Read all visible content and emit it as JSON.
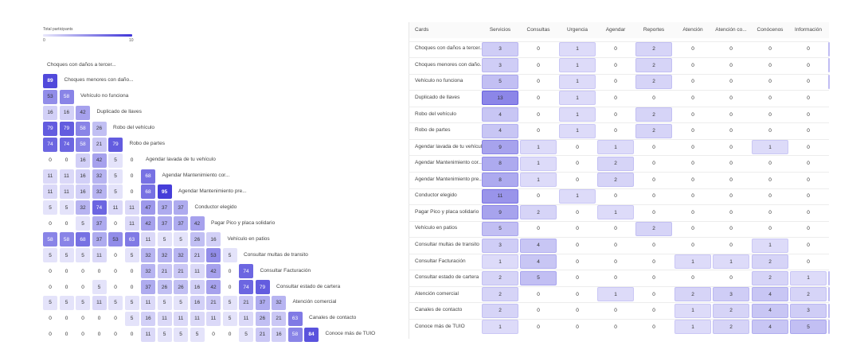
{
  "legend": {
    "title": "Total participants",
    "min": "0",
    "max": "10"
  },
  "colors": {
    "accent": "#3f35d8",
    "light": "#e9e8fb",
    "grid": "#ececec"
  },
  "chart_data": [
    {
      "type": "heatmap",
      "name": "similarity-matrix",
      "labels": [
        "Choques con daños a tercer...",
        "Choques menores con daño...",
        "Vehículo no funciona",
        "Duplicado de llaves",
        "Robo del vehículo",
        "Robo de partes",
        "Agendar lavada de tu vehículo",
        "Agendar Mantenimiento cor...",
        "Agendar Mantenimiento pre...",
        "Conductor elegido",
        "Pagar Pico y placa solidario",
        "Vehículo en patios",
        "Consultar multas de transito",
        "Consultar Facturación",
        "Consultar estado de cartera",
        "Atención comercial",
        "Canales de contacto",
        "Conoce más de TUIO"
      ],
      "rows": [
        [],
        [
          89
        ],
        [
          53,
          58
        ],
        [
          16,
          16,
          42
        ],
        [
          79,
          79,
          58,
          26
        ],
        [
          74,
          74,
          58,
          21,
          79
        ],
        [
          0,
          0,
          16,
          42,
          5,
          0
        ],
        [
          11,
          11,
          16,
          32,
          5,
          0,
          68
        ],
        [
          11,
          11,
          16,
          32,
          5,
          0,
          68,
          95
        ],
        [
          5,
          5,
          32,
          74,
          11,
          11,
          47,
          37,
          37
        ],
        [
          0,
          0,
          5,
          37,
          0,
          11,
          42,
          37,
          37,
          42
        ],
        [
          58,
          58,
          68,
          37,
          53,
          63,
          11,
          5,
          5,
          26,
          16
        ],
        [
          5,
          5,
          5,
          11,
          0,
          5,
          32,
          32,
          32,
          21,
          53,
          5
        ],
        [
          0,
          0,
          0,
          0,
          0,
          0,
          32,
          21,
          21,
          11,
          42,
          0,
          74
        ],
        [
          0,
          0,
          0,
          5,
          0,
          0,
          37,
          26,
          26,
          16,
          42,
          0,
          74,
          79
        ],
        [
          5,
          5,
          5,
          11,
          5,
          5,
          11,
          5,
          5,
          16,
          21,
          5,
          21,
          37,
          32
        ],
        [
          0,
          0,
          0,
          0,
          0,
          5,
          16,
          11,
          11,
          11,
          11,
          5,
          11,
          26,
          21,
          63
        ],
        [
          0,
          0,
          0,
          0,
          0,
          0,
          11,
          5,
          5,
          5,
          0,
          0,
          5,
          21,
          16,
          58,
          84
        ]
      ]
    },
    {
      "type": "table",
      "name": "cards-matrix",
      "corner": "Cards",
      "columns": [
        "Servicios",
        "Consultas",
        "Urgencia",
        "Agendar",
        "Reportes",
        "Atención",
        "Atención co...",
        "Conócenos",
        "Información"
      ],
      "rows": [
        {
          "label": "Choques con daños a tercer...",
          "values": [
            3,
            0,
            1,
            0,
            2,
            0,
            0,
            0,
            0
          ]
        },
        {
          "label": "Choques menores con daño...",
          "values": [
            3,
            0,
            1,
            0,
            2,
            0,
            0,
            0,
            0
          ]
        },
        {
          "label": "Vehículo no funciona",
          "values": [
            5,
            0,
            1,
            0,
            2,
            0,
            0,
            0,
            0
          ]
        },
        {
          "label": "Duplicado de llaves",
          "values": [
            13,
            0,
            1,
            0,
            0,
            0,
            0,
            0,
            0
          ]
        },
        {
          "label": "Robo del vehículo",
          "values": [
            4,
            0,
            1,
            0,
            2,
            0,
            0,
            0,
            0
          ]
        },
        {
          "label": "Robo de partes",
          "values": [
            4,
            0,
            1,
            0,
            2,
            0,
            0,
            0,
            0
          ]
        },
        {
          "label": "Agendar lavada de tu vehículo",
          "values": [
            9,
            1,
            0,
            1,
            0,
            0,
            0,
            1,
            0
          ]
        },
        {
          "label": "Agendar Mantenimiento cor...",
          "values": [
            8,
            1,
            0,
            2,
            0,
            0,
            0,
            0,
            0
          ]
        },
        {
          "label": "Agendar Mantenimiento pre...",
          "values": [
            8,
            1,
            0,
            2,
            0,
            0,
            0,
            0,
            0
          ]
        },
        {
          "label": "Conductor elegido",
          "values": [
            11,
            0,
            1,
            0,
            0,
            0,
            0,
            0,
            0
          ]
        },
        {
          "label": "Pagar Pico y placa solidario",
          "values": [
            9,
            2,
            0,
            1,
            0,
            0,
            0,
            0,
            0
          ]
        },
        {
          "label": "Vehículo en patios",
          "values": [
            5,
            0,
            0,
            0,
            2,
            0,
            0,
            0,
            0
          ]
        },
        {
          "label": "Consultar multas de transito",
          "values": [
            3,
            4,
            0,
            0,
            0,
            0,
            0,
            1,
            0
          ]
        },
        {
          "label": "Consultar Facturación",
          "values": [
            1,
            4,
            0,
            0,
            0,
            1,
            1,
            2,
            0
          ]
        },
        {
          "label": "Consultar estado de cartera",
          "values": [
            2,
            5,
            0,
            0,
            0,
            0,
            0,
            2,
            1
          ]
        },
        {
          "label": "Atención comercial",
          "values": [
            2,
            0,
            0,
            1,
            0,
            2,
            3,
            4,
            2
          ]
        },
        {
          "label": "Canales de contacto",
          "values": [
            2,
            0,
            0,
            0,
            0,
            1,
            2,
            4,
            3
          ]
        },
        {
          "label": "Conoce más de TUIO",
          "values": [
            1,
            0,
            0,
            0,
            0,
            1,
            2,
            4,
            5
          ]
        }
      ]
    }
  ]
}
